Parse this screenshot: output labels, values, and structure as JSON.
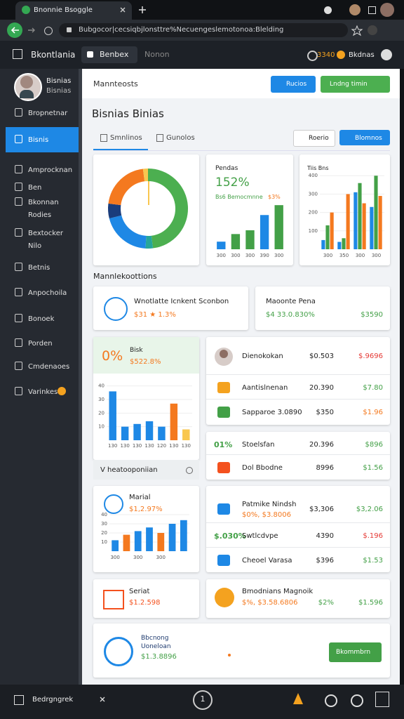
{
  "browser": {
    "tab_title": "Bnonnie Bsoggle",
    "url": "Bubgocor|cecsiqbjlonsttre%Necuengeslemotonoa:Blelding"
  },
  "app_bar": {
    "brand": "Bkontlania",
    "tabs": [
      "Benbex",
      "Nonon"
    ],
    "points": "3340",
    "user": "Bkdnas"
  },
  "profile": {
    "name": "Bisnias",
    "role": "Bisnias"
  },
  "sidebar": {
    "active": 1,
    "items": [
      "Bropnetnar",
      "Bisnis",
      "Amprocknan",
      "Ben",
      "Bkonnan Rodies",
      "Bextocker Nilo",
      "Betnis",
      "Anpochoila",
      "Bonoek",
      "Porden",
      "Cmdenaoes",
      "Varinkes"
    ]
  },
  "header": {
    "title": "Mannteosts",
    "primary_button": "Rucios",
    "secondary_button": "Lndng timin"
  },
  "page_title": "Bisnias Binias",
  "tabs": {
    "active": 0,
    "items": [
      "Smnlinos",
      "Gunolos"
    ],
    "actions": [
      "Roerio",
      "Blomnos"
    ]
  },
  "charts": [
    {
      "type": "pie",
      "values": [
        48,
        3,
        20,
        6,
        21,
        2
      ],
      "colors": [
        "#4caf50",
        "#26a69a",
        "#1e88e5",
        "#1a3d7c",
        "#f4791f",
        "#f9c74f"
      ]
    },
    {
      "type": "bar",
      "title": "Pendas",
      "headline": "152%",
      "subtitle": "Bs6 Bemocmnne",
      "note": "$3%",
      "categories": [
        "300",
        "300",
        "300",
        "390",
        "300"
      ],
      "values": [
        10,
        20,
        25,
        45,
        58
      ],
      "colors": [
        "#1e88e5",
        "#43a047",
        "#43a047",
        "#1e88e5",
        "#43a047"
      ],
      "ylim": [
        0,
        60
      ]
    },
    {
      "type": "grouped-bar",
      "title": "Tiis Bns",
      "categories": [
        "300",
        "350",
        "300",
        "300"
      ],
      "ylim": [
        0,
        420
      ],
      "yticks": [
        100,
        200,
        300,
        400
      ],
      "series": [
        {
          "color": "#1e88e5",
          "values": [
            50,
            40,
            310,
            230
          ]
        },
        {
          "color": "#43a047",
          "values": [
            130,
            60,
            360,
            400
          ]
        },
        {
          "color": "#f4791f",
          "values": [
            200,
            300,
            250,
            290
          ]
        }
      ]
    },
    {
      "type": "bar",
      "badge": "0%",
      "title": "Bisk",
      "value": "$522.8%",
      "categories": [
        "130",
        "130",
        "130",
        "130",
        "120",
        "130",
        "130"
      ],
      "values": [
        36,
        10,
        12,
        14,
        10,
        27,
        8
      ],
      "colors": [
        "#1e88e5",
        "#1e88e5",
        "#1e88e5",
        "#1e88e5",
        "#1e88e5",
        "#f4791f",
        "#f9c74f"
      ],
      "ylim": [
        0,
        45
      ],
      "yticks": [
        10,
        20,
        30,
        40
      ]
    },
    {
      "type": "bar",
      "title": "Marial",
      "value": "$1,2.97%",
      "categories": [
        "300",
        null,
        "300",
        null,
        "300",
        null,
        null
      ],
      "values": [
        12,
        18,
        22,
        26,
        20,
        30,
        34
      ],
      "colors": [
        "#1e88e5",
        "#f4791f",
        "#1e88e5",
        "#1e88e5",
        "#f4791f",
        "#1e88e5",
        "#1e88e5"
      ],
      "ylim": [
        0,
        40
      ],
      "yticks": [
        10,
        20,
        30,
        40
      ]
    }
  ],
  "section_title": "Mannlekoottions",
  "metrics": [
    {
      "title": "Wnotlatte Icnkent Sconbon",
      "value": "$31 ★ 1.3%"
    },
    {
      "title": "Maoonte Pena",
      "value": "$4 33.0.830%",
      "extra": "$3590"
    }
  ],
  "chart_footer": "V heatooponiian",
  "lists": [
    {
      "rows": [
        {
          "name": "Dienokokan",
          "amount": "$0.503",
          "value": "$.9696",
          "value_color": "#e53935"
        },
        {
          "name": "Aantislnenan",
          "amount": "20.390",
          "value": "$7.80",
          "value_color": "#43a047"
        },
        {
          "name": "Sapparoe 3.0890",
          "amount": "$350",
          "value": "$1.96",
          "value_color": "#f4791f"
        }
      ]
    },
    {
      "rows": [
        {
          "badge": "01%",
          "name": "Stoelsfan",
          "amount": "20.396",
          "value": "$896",
          "value_color": "#43a047"
        },
        {
          "name": "Dol Bbodne",
          "amount": "8996",
          "value": "$1.56",
          "value_color": "#43a047"
        }
      ]
    },
    {
      "rows": [
        {
          "name": "Patmike Nindsh",
          "sub": "$0%, $3.8006",
          "amount": "$3,306",
          "value": "$3,2.06",
          "value_color": "#43a047"
        },
        {
          "badge": "$.030%",
          "name": "Swtlcdvpe",
          "amount": "4390",
          "value": "$.196",
          "value_color": "#e53935"
        },
        {
          "name": "Cheoel Varasa",
          "amount": "$396",
          "value": "$1.53",
          "value_color": "#43a047"
        }
      ]
    }
  ],
  "small_cards": [
    {
      "title": "Seriat",
      "value": "$1.2.598"
    },
    {
      "title": "Bmodnians Magnoik",
      "value": "$%, $3.58.6806",
      "amount": "$2%",
      "extra": "$1.596"
    }
  ],
  "promo": {
    "title": "Bbcnong",
    "subtitle": "Uoneloan",
    "value": "$1.3.8896",
    "button": "Bkommbrn"
  },
  "bottom_bar": {
    "label": "Bedrgngrek",
    "page": "1"
  }
}
